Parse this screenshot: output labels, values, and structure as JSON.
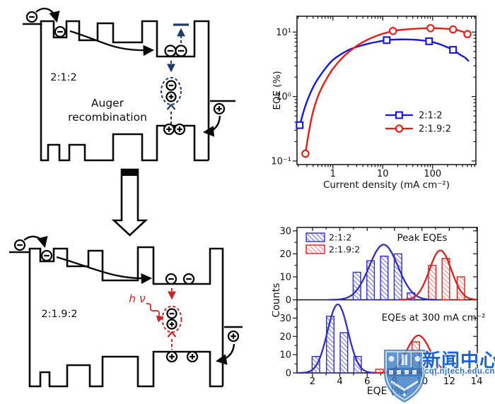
{
  "diagrams": {
    "top": {
      "ratio_label": "2:1:2",
      "caption_line1": "Auger",
      "caption_line2": "recombination"
    },
    "bottom": {
      "ratio_label": "2:1.9:2",
      "photon_label": "h ν"
    },
    "colors": {
      "outline": "#0a0a0a",
      "auger_accent": "#1f3a6e",
      "radiative_accent": "#c62828"
    }
  },
  "watermark": {
    "cn_text": "新闻中心",
    "url_text": "cqt.njtech.edu.cn",
    "color": "#1a63d6"
  },
  "chart_data": [
    {
      "type": "line",
      "title": "",
      "xlabel": "Current density (mA cm⁻²)",
      "ylabel": "EQE (%)",
      "xscale": "log",
      "yscale": "log",
      "xlim": [
        0.19,
        740
      ],
      "ylim": [
        0.088,
        17.6
      ],
      "xticks": [
        1,
        10,
        100
      ],
      "xtick_labels": [
        "1",
        "10",
        "100"
      ],
      "yticks": [
        0.1,
        1,
        10
      ],
      "ytick_labels": [
        "10⁻¹",
        "10⁰",
        "10¹"
      ],
      "grid": false,
      "legend_position": "center-right",
      "series": [
        {
          "name": "2:1:2",
          "color": "#1616e0",
          "marker": "square",
          "markers": [
            [
              0.215,
              0.36
            ],
            [
              12,
              7.5
            ],
            [
              85,
              7.2
            ],
            [
              257,
              5.3
            ]
          ],
          "curve": [
            [
              0.215,
              0.355
            ],
            [
              0.26,
              0.6
            ],
            [
              0.32,
              0.95
            ],
            [
              0.42,
              1.5
            ],
            [
              0.55,
              2.1
            ],
            [
              0.75,
              2.9
            ],
            [
              1.0,
              3.7
            ],
            [
              1.5,
              4.6
            ],
            [
              2.2,
              5.4
            ],
            [
              3.5,
              6.1
            ],
            [
              5.5,
              6.7
            ],
            [
              8,
              7.1
            ],
            [
              12,
              7.5
            ],
            [
              18,
              7.65
            ],
            [
              30,
              7.7
            ],
            [
              50,
              7.55
            ],
            [
              85,
              7.2
            ],
            [
              130,
              6.6
            ],
            [
              180,
              6.0
            ],
            [
              257,
              5.3
            ],
            [
              350,
              4.5
            ],
            [
              450,
              4.0
            ],
            [
              520,
              3.6
            ]
          ]
        },
        {
          "name": "2:1.9:2",
          "color": "#ea1b17",
          "marker": "circle",
          "markers": [
            [
              0.28,
              0.13
            ],
            [
              16,
              10.4
            ],
            [
              91,
              11.5
            ],
            [
              257,
              11.0
            ],
            [
              500,
              9.3
            ]
          ],
          "curve": [
            [
              0.28,
              0.13
            ],
            [
              0.32,
              0.25
            ],
            [
              0.38,
              0.5
            ],
            [
              0.45,
              0.8
            ],
            [
              0.55,
              1.2
            ],
            [
              0.75,
              1.9
            ],
            [
              1.0,
              2.7
            ],
            [
              1.5,
              3.9
            ],
            [
              2.2,
              5.1
            ],
            [
              3.5,
              6.6
            ],
            [
              5.5,
              7.9
            ],
            [
              8,
              8.9
            ],
            [
              12,
              9.8
            ],
            [
              16,
              10.4
            ],
            [
              25,
              10.9
            ],
            [
              40,
              11.2
            ],
            [
              60,
              11.4
            ],
            [
              91,
              11.5
            ],
            [
              130,
              11.45
            ],
            [
              180,
              11.3
            ],
            [
              257,
              11.0
            ],
            [
              350,
              10.5
            ],
            [
              430,
              9.9
            ],
            [
              500,
              9.3
            ]
          ]
        }
      ]
    },
    {
      "type": "histogram",
      "xlabel": "EQE (%)",
      "ylabel": "Counts",
      "xlim": [
        0.87,
        14.05
      ],
      "xticks": [
        2,
        4,
        6,
        8,
        10,
        12,
        14
      ],
      "panels": [
        {
          "title": "Peak EQEs",
          "ylim": [
            0,
            31.5
          ],
          "yticks": [
            0,
            10,
            20,
            30
          ],
          "legend": true,
          "series": [
            {
              "name": "2:1:2",
              "color": "#2f2fc8",
              "bar_width": 0.55,
              "bars": [
                [
                  5.25,
                  12
                ],
                [
                  6.25,
                  17
                ],
                [
                  7.25,
                  19
                ],
                [
                  8.25,
                  20
                ],
                [
                  9.2,
                  3
                ]
              ],
              "gaussian": {
                "mu": 7.2,
                "sigma": 1.05,
                "peak": 24
              }
            },
            {
              "name": "2:1.9:2",
              "color": "#d6231f",
              "bar_width": 0.55,
              "bars": [
                [
                  10.75,
                  15
                ],
                [
                  11.75,
                  18
                ],
                [
                  12.85,
                  10
                ]
              ],
              "gaussian": {
                "mu": 11.35,
                "sigma": 0.8,
                "peak": 21.5
              }
            }
          ]
        },
        {
          "title": "EQEs at 300 mA cm⁻²",
          "ylim": [
            0,
            40
          ],
          "yticks": [
            0,
            10,
            20,
            30
          ],
          "legend": false,
          "series": [
            {
              "name": "2:1:2",
              "color": "#2f2fc8",
              "bar_width": 0.55,
              "bars": [
                [
                  2.25,
                  9
                ],
                [
                  3.3,
                  31
                ],
                [
                  4.3,
                  22
                ],
                [
                  5.3,
                  9
                ]
              ],
              "gaussian": {
                "mu": 3.85,
                "sigma": 0.75,
                "peak": 37.5
              }
            },
            {
              "name": "2:1.9:2",
              "color": "#d6231f",
              "bar_width": 0.55,
              "bars": [
                [
                  6.9,
                  2
                ],
                [
                  8.0,
                  2
                ],
                [
                  9.55,
                  17
                ],
                [
                  10.35,
                  12
                ]
              ],
              "gaussian": {
                "mu": 9.75,
                "sigma": 0.85,
                "peak": 20.5
              }
            }
          ]
        }
      ]
    }
  ]
}
